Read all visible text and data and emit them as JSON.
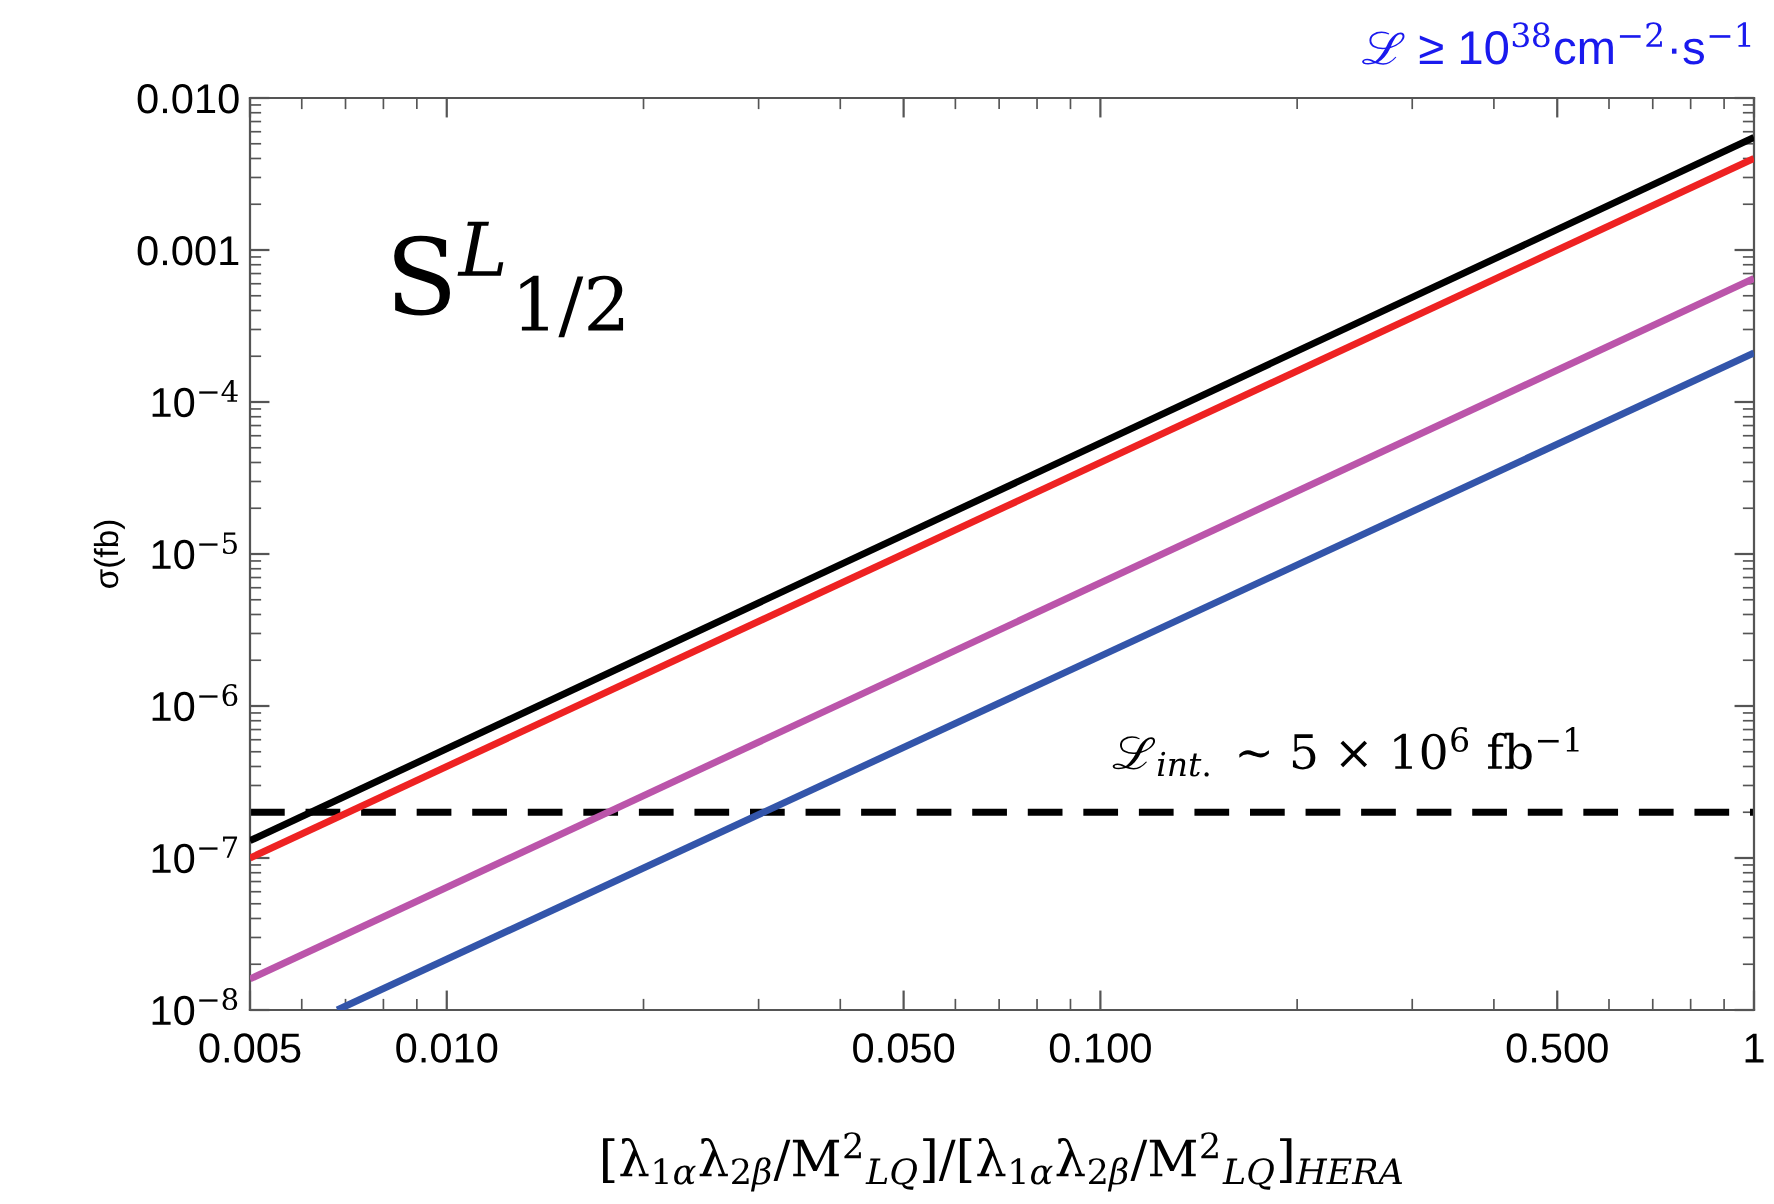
{
  "chart_data": {
    "type": "line",
    "log": "xy",
    "xlabel": "[λ$_{1α}$λ$_{2β}$/M$^{2}$$_{LQ}$]/[λ$_{1α}$λ$_{2β}$/M$^{2}$$_{LQ}$]$_{HERA}$",
    "ylabel": "σ(fb)",
    "annotations": [
      "S$^{L}$$_{1/2}$",
      "ℒ ≥ 10$^{38}$cm$^{−2}$·s$^{−1}$"
    ],
    "series": [
      {
        "color": "#000000",
        "x": [
          0.005,
          1
        ],
        "values": [
          1.3e-07,
          0.0055
        ]
      },
      {
        "color": "#ee2222",
        "x": [
          0.005,
          1
        ],
        "values": [
          1e-07,
          0.004
        ]
      },
      {
        "color": "#bb55aa",
        "x": [
          0.005,
          1
        ],
        "values": [
          1.6e-08,
          0.00065
        ]
      },
      {
        "color": "#3355aa",
        "x": [
          0.0068,
          1
        ],
        "values": [
          1e-08,
          0.00021
        ]
      }
    ],
    "ref_lines": [
      {
        "axis": "y",
        "value": 2e-07,
        "label": "ℒ$_{int.}$ ∼ 5 × 10$^{6}$ fb$^{−1}$",
        "color": "#000000",
        "line_style": "dashed"
      }
    ],
    "xlim": [
      0.005,
      1
    ],
    "ylim": [
      1e-08,
      0.01
    ],
    "xticks": [
      {
        "value": 0.005,
        "label": "0.005"
      },
      {
        "value": 0.01,
        "label": "0.010"
      },
      {
        "value": 0.05,
        "label": "0.050"
      },
      {
        "value": 0.1,
        "label": "0.100"
      },
      {
        "value": 0.5,
        "label": "0.500"
      },
      1
    ],
    "yticks": [
      {
        "value": 1e-08,
        "label": "10$^{−8}$"
      },
      {
        "value": 1e-07,
        "label": "10$^{−7}$"
      },
      {
        "value": 1e-06,
        "label": "10$^{−6}$"
      },
      {
        "value": 1e-05,
        "label": "10$^{−5}$"
      },
      {
        "value": 0.0001,
        "label": "10$^{−4}$"
      },
      {
        "value": 0.001,
        "label": "0.001"
      },
      {
        "value": 0.01,
        "label": "0.010"
      }
    ],
    "grid": false,
    "legend": false,
    "line_style": "solid",
    "marker": "none"
  }
}
